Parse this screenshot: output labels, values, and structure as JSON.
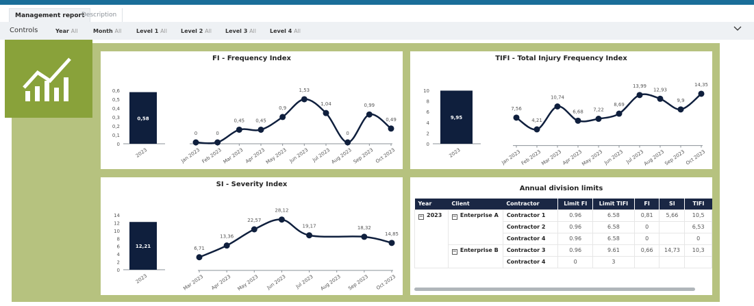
{
  "tabs": [
    "Management report",
    "Description"
  ],
  "controls": {
    "label": "Controls",
    "filters": [
      {
        "name": "Year",
        "value": "All"
      },
      {
        "name": "Month",
        "value": "All"
      },
      {
        "name": "Level 1",
        "value": "All"
      },
      {
        "name": "Level 2",
        "value": "All"
      },
      {
        "name": "Level 3",
        "value": "All"
      },
      {
        "name": "Level 4",
        "value": "All"
      }
    ],
    "collapse_icon": "chevron-down-icon"
  },
  "colors": {
    "topbar": "#1a6e99",
    "frame": "#b6c27f",
    "logo": "#89a23a",
    "series": "#0f1f3d",
    "header": "#1a2744"
  },
  "logo_icon": "chart-trend-icon",
  "chart_data": [
    {
      "title": "FI - Frequency Index",
      "type": "bar+line",
      "bar": {
        "categories": [
          "2023"
        ],
        "values": [
          0.58
        ],
        "labels": [
          "0,58"
        ],
        "yticks": [
          "0",
          "0,1",
          "0,2",
          "0,3",
          "0,4",
          "0,5",
          "0,6"
        ],
        "ylim": [
          0,
          0.6
        ]
      },
      "line": {
        "categories": [
          "Jan 2023",
          "Feb 2023",
          "Mar 2023",
          "Apr 2023",
          "May 2023",
          "Jun 2023",
          "Jul 2023",
          "Aug 2023",
          "Sep 2023",
          "Oct 2023"
        ],
        "values": [
          0,
          0,
          0.45,
          0.45,
          0.9,
          1.53,
          1.04,
          0,
          0.99,
          0.49
        ],
        "labels": [
          "0",
          "0",
          "0,45",
          "0,45",
          "0,9",
          "1,53",
          "1,04",
          "0",
          "0,99",
          "0,49"
        ]
      }
    },
    {
      "title": "TIFI - Total Injury Frequency Index",
      "type": "bar+line",
      "bar": {
        "categories": [
          "2023"
        ],
        "values": [
          9.95
        ],
        "labels": [
          "9,95"
        ],
        "yticks": [
          "0",
          "2",
          "4",
          "6",
          "8",
          "10"
        ],
        "ylim": [
          0,
          10
        ]
      },
      "line": {
        "categories": [
          "Jan 2023",
          "Feb 2023",
          "Mar 2023",
          "Apr 2023",
          "May 2023",
          "Jun 2023",
          "Jul 2023",
          "Aug 2023",
          "Sep 2023",
          "Oct 2023"
        ],
        "values": [
          7.56,
          4.21,
          10.74,
          6.68,
          7.22,
          8.69,
          13.99,
          12.93,
          9.9,
          14.35
        ],
        "labels": [
          "7,56",
          "4,21",
          "10,74",
          "6,68",
          "7,22",
          "8,69",
          "13,99",
          "12,93",
          "9,9",
          "14,35"
        ]
      }
    },
    {
      "title": "SI - Severity Index",
      "type": "bar+line",
      "bar": {
        "categories": [
          "2023"
        ],
        "values": [
          12.21
        ],
        "labels": [
          "12,21"
        ],
        "yticks": [
          "0",
          "2",
          "4",
          "6",
          "8",
          "10",
          "12",
          "14"
        ],
        "ylim": [
          0,
          14
        ]
      },
      "line": {
        "categories": [
          "Mar 2023",
          "Apr 2023",
          "May 2023",
          "Jun 2023",
          "Jul 2023",
          "Aug 2023",
          "Sep 2023",
          "Oct 2023"
        ],
        "values": [
          6.71,
          13.36,
          22.57,
          28.12,
          19.17,
          null,
          18.32,
          14.85
        ],
        "labels": [
          "6,71",
          "13,36",
          "22,57",
          "28,12",
          "19,17",
          "",
          "18,32",
          "14,85"
        ]
      }
    }
  ],
  "table": {
    "title": "Annual division limits",
    "columns": [
      "Year",
      "Client",
      "Contractor",
      "Limit FI",
      "Limit TIFI",
      "FI",
      "SI",
      "TIFI"
    ],
    "rows": [
      {
        "year": "2023",
        "client": "Enterprise A",
        "contractor": "Contractor 1",
        "limit_fi": "0.96",
        "limit_tifi": "6.58",
        "fi": "0,81",
        "si": "5,66",
        "tifi": "10,5"
      },
      {
        "year": "",
        "client": "",
        "contractor": "Contractor 2",
        "limit_fi": "0.96",
        "limit_tifi": "6.58",
        "fi": "0",
        "si": "",
        "tifi": "6,53"
      },
      {
        "year": "",
        "client": "",
        "contractor": "Contractor 4",
        "limit_fi": "0.96",
        "limit_tifi": "6.58",
        "fi": "0",
        "si": "",
        "tifi": "0"
      },
      {
        "year": "",
        "client": "Enterprise B",
        "contractor": "Contractor 3",
        "limit_fi": "0.96",
        "limit_tifi": "9.61",
        "fi": "0,66",
        "si": "14,73",
        "tifi": "10,3"
      },
      {
        "year": "",
        "client": "",
        "contractor": "Contractor 4",
        "limit_fi": "0",
        "limit_tifi": "3",
        "fi": "",
        "si": "",
        "tifi": ""
      }
    ]
  }
}
